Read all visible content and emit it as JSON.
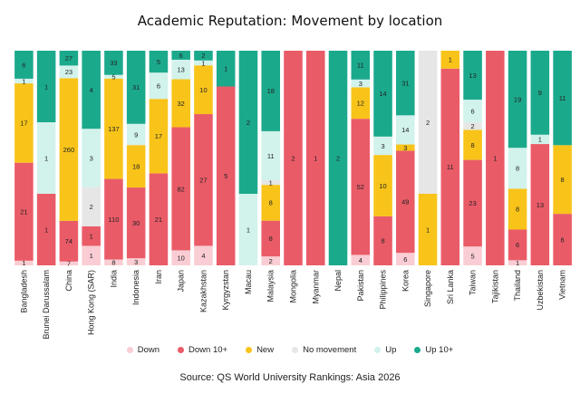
{
  "title": "Academic Reputation: Movement by location",
  "source": "Source: QS World University Rankings: Asia 2026",
  "chart_data": {
    "type": "bar",
    "stacked": true,
    "normalized": true,
    "title": "Academic Reputation: Movement by location",
    "xlabel": "",
    "ylabel": "",
    "legend_position": "bottom",
    "categories": [
      "Bangladesh",
      "Brunei Darussalam",
      "China",
      "Hong Kong (SAR)",
      "India",
      "Indonesia",
      "Iran",
      "Japan",
      "Kazakhstan",
      "Kyrgyzstan",
      "Macau",
      "Malaysia",
      "Mongolia",
      "Myanmar",
      "Nepal",
      "Pakistan",
      "Philippines",
      "Korea",
      "Singapore",
      "Sri Lanka",
      "Taiwan",
      "Tajikistan",
      "Thailand",
      "Uzbekistan",
      "Vietnam"
    ],
    "series": [
      {
        "name": "Down",
        "color": "#f9cdd3",
        "values": [
          1,
          0,
          7,
          1,
          8,
          3,
          0,
          10,
          4,
          0,
          0,
          2,
          0,
          0,
          0,
          4,
          0,
          6,
          0,
          0,
          5,
          0,
          1,
          0,
          0
        ],
        "labels": [
          "1",
          "",
          "7",
          "1",
          "8",
          "3",
          "",
          "10",
          "4",
          "",
          "",
          "2",
          "",
          "",
          "",
          "4",
          "",
          "6",
          "",
          "",
          "5",
          "",
          "1",
          "",
          ""
        ]
      },
      {
        "name": "Down 10+",
        "color": "#ea5b68",
        "values": [
          21,
          1,
          74,
          1,
          110,
          30,
          21,
          82,
          27,
          5,
          0,
          8,
          2,
          1,
          0,
          52,
          8,
          49,
          0,
          11,
          23,
          1,
          6,
          13,
          6
        ],
        "labels": [
          "21",
          "1",
          "74",
          "1",
          "110",
          "30",
          "21",
          "82",
          "27",
          "5",
          "",
          "8",
          "2",
          "1",
          "",
          "52",
          "8",
          "49",
          "",
          "11",
          "23",
          "1",
          "6",
          "13",
          "6"
        ]
      },
      {
        "name": "New",
        "color": "#f8c41a",
        "values": [
          17,
          0,
          260,
          0,
          137,
          18,
          17,
          32,
          10,
          0,
          0,
          8,
          0,
          0,
          0,
          12,
          10,
          3,
          1,
          1,
          8,
          0,
          8,
          0,
          8
        ],
        "labels": [
          "17",
          "",
          "260",
          "",
          "137",
          "18",
          "17",
          "32",
          "10",
          "",
          "",
          "8",
          "",
          "",
          "",
          "12",
          "10",
          "3",
          "1",
          "1",
          "8",
          "",
          "8",
          "",
          "8"
        ]
      },
      {
        "name": "No movement",
        "color": "#e6e6e6",
        "values": [
          0,
          0,
          0,
          2,
          0,
          0,
          0,
          0,
          0,
          0,
          0,
          1,
          0,
          0,
          0,
          0,
          0,
          0,
          2,
          0,
          2,
          0,
          0,
          0,
          0
        ],
        "labels": [
          "",
          "",
          "",
          "2",
          "",
          "",
          "",
          "",
          "",
          "",
          "",
          "1",
          "",
          "",
          "",
          "",
          "",
          "",
          "2",
          "",
          "2",
          "",
          "",
          "",
          ""
        ]
      },
      {
        "name": "Up",
        "color": "#d2f2ec",
        "values": [
          1,
          1,
          23,
          3,
          5,
          9,
          6,
          13,
          1,
          0,
          1,
          11,
          0,
          0,
          0,
          3,
          3,
          14,
          0,
          0,
          6,
          0,
          8,
          1,
          0
        ],
        "labels": [
          "1",
          "1",
          "23",
          "3",
          "5",
          "9",
          "6",
          "13",
          "1",
          "",
          "1",
          "11",
          "",
          "",
          "",
          "3",
          "3",
          "14",
          "",
          "",
          "6",
          "",
          "8",
          "1",
          ""
        ]
      },
      {
        "name": "Up 10+",
        "color": "#1ba98c",
        "values": [
          6,
          1,
          27,
          4,
          33,
          31,
          5,
          6,
          2,
          1,
          2,
          18,
          0,
          0,
          2,
          11,
          14,
          31,
          0,
          0,
          13,
          0,
          19,
          9,
          11
        ],
        "labels": [
          "6",
          "1",
          "27",
          "4",
          "33",
          "31",
          "5",
          "6",
          "2",
          "1",
          "2",
          "18",
          "",
          "",
          "2",
          "11",
          "14",
          "31",
          "",
          "",
          "13",
          "",
          "19",
          "9",
          "11"
        ]
      }
    ]
  }
}
